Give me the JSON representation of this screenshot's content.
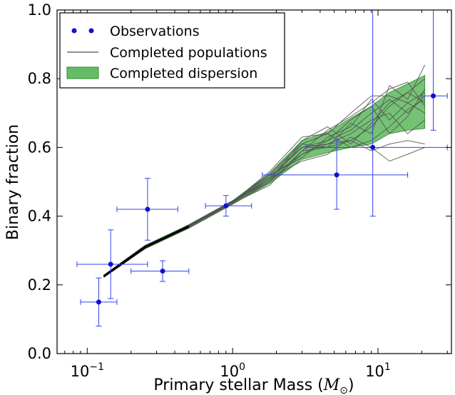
{
  "chart_data": {
    "type": "line",
    "xlabel": "Primary stellar Mass",
    "xlabel_unit": "M",
    "xlabel_unit_sub": "⊙",
    "ylabel": "Binary fraction",
    "xscale": "log",
    "xlim": [
      0.062,
      32
    ],
    "ylim": [
      0.0,
      1.0
    ],
    "x_ticks": [
      {
        "value": 0.1,
        "base": "10",
        "exp": "−1"
      },
      {
        "value": 1,
        "base": "10",
        "exp": "0"
      },
      {
        "value": 10,
        "base": "10",
        "exp": "1"
      }
    ],
    "y_ticks": [
      {
        "value": 0.0,
        "label": "0.0"
      },
      {
        "value": 0.2,
        "label": "0.2"
      },
      {
        "value": 0.4,
        "label": "0.4"
      },
      {
        "value": 0.6,
        "label": "0.6"
      },
      {
        "value": 0.8,
        "label": "0.8"
      },
      {
        "value": 1.0,
        "label": "1.0"
      }
    ],
    "legend": {
      "placement": "top-left",
      "entries": [
        "Observations",
        "Completed populations",
        "Completed dispersion"
      ]
    },
    "colors": {
      "observations": "#1111cc",
      "errorbars": "#3344ee",
      "populations": "#505050",
      "dispersion_fill": "#66bb66",
      "dispersion_edge": "#2e8b2e",
      "mean_line": "#000000"
    },
    "observations": [
      {
        "x": 0.12,
        "y": 0.15,
        "xerr": [
          0.09,
          0.16
        ],
        "yerr": [
          0.08,
          0.22
        ]
      },
      {
        "x": 0.145,
        "y": 0.26,
        "xerr": [
          0.085,
          0.26
        ],
        "yerr": [
          0.16,
          0.36
        ]
      },
      {
        "x": 0.26,
        "y": 0.42,
        "xerr": [
          0.16,
          0.42
        ],
        "yerr": [
          0.33,
          0.51
        ]
      },
      {
        "x": 0.33,
        "y": 0.24,
        "xerr": [
          0.2,
          0.5
        ],
        "yerr": [
          0.21,
          0.27
        ]
      },
      {
        "x": 0.9,
        "y": 0.43,
        "xerr": [
          0.65,
          1.35
        ],
        "yerr": [
          0.4,
          0.46
        ]
      },
      {
        "x": 5.2,
        "y": 0.52,
        "xerr": [
          1.6,
          16
        ],
        "yerr": [
          0.42,
          0.62
        ]
      },
      {
        "x": 9.2,
        "y": 0.6,
        "xerr": [
          3.2,
          30
        ],
        "yerr": [
          0.4,
          1.0
        ]
      },
      {
        "x": 24,
        "y": 0.75,
        "xerr": [
          20,
          30
        ],
        "yerr": [
          0.65,
          1.0
        ]
      }
    ],
    "population_x": [
      0.13,
      0.25,
      0.5,
      1.0,
      1.8,
      3.0,
      4.5,
      6.5,
      9.0,
      12,
      16,
      21
    ],
    "populations": [
      [
        0.225,
        0.31,
        0.37,
        0.44,
        0.51,
        0.6,
        0.62,
        0.65,
        0.7,
        0.74,
        0.7,
        0.75
      ],
      [
        0.225,
        0.31,
        0.375,
        0.445,
        0.5,
        0.58,
        0.61,
        0.62,
        0.66,
        0.72,
        0.76,
        0.8
      ],
      [
        0.228,
        0.315,
        0.37,
        0.44,
        0.52,
        0.57,
        0.63,
        0.66,
        0.74,
        0.68,
        0.73,
        0.7
      ],
      [
        0.222,
        0.305,
        0.365,
        0.435,
        0.5,
        0.61,
        0.6,
        0.67,
        0.64,
        0.78,
        0.74,
        0.84
      ],
      [
        0.225,
        0.31,
        0.372,
        0.442,
        0.53,
        0.63,
        0.64,
        0.6,
        0.62,
        0.66,
        0.71,
        0.74
      ],
      [
        0.226,
        0.312,
        0.37,
        0.44,
        0.51,
        0.56,
        0.58,
        0.63,
        0.6,
        0.56,
        0.58,
        0.6
      ],
      [
        0.224,
        0.31,
        0.368,
        0.438,
        0.49,
        0.59,
        0.65,
        0.69,
        0.73,
        0.77,
        0.79,
        0.72
      ],
      [
        0.225,
        0.308,
        0.371,
        0.441,
        0.52,
        0.6,
        0.61,
        0.64,
        0.68,
        0.7,
        0.64,
        0.68
      ],
      [
        0.226,
        0.311,
        0.373,
        0.443,
        0.505,
        0.62,
        0.66,
        0.61,
        0.67,
        0.73,
        0.76,
        0.73
      ],
      [
        0.224,
        0.309,
        0.369,
        0.439,
        0.515,
        0.58,
        0.62,
        0.68,
        0.72,
        0.64,
        0.69,
        0.77
      ],
      [
        0.225,
        0.31,
        0.37,
        0.44,
        0.5,
        0.59,
        0.6,
        0.62,
        0.59,
        0.61,
        0.62,
        0.61
      ],
      [
        0.225,
        0.31,
        0.37,
        0.44,
        0.525,
        0.61,
        0.64,
        0.7,
        0.75,
        0.75,
        0.73,
        0.76
      ]
    ],
    "dispersion_lower": [
      0.222,
      0.305,
      0.365,
      0.435,
      0.495,
      0.565,
      0.585,
      0.6,
      0.61,
      0.64,
      0.65,
      0.655
    ],
    "dispersion_upper": [
      0.228,
      0.315,
      0.375,
      0.445,
      0.525,
      0.62,
      0.645,
      0.685,
      0.72,
      0.76,
      0.785,
      0.81
    ],
    "mean_x": [
      0.13,
      0.25,
      0.5
    ],
    "mean_y": [
      0.225,
      0.31,
      0.37
    ]
  }
}
